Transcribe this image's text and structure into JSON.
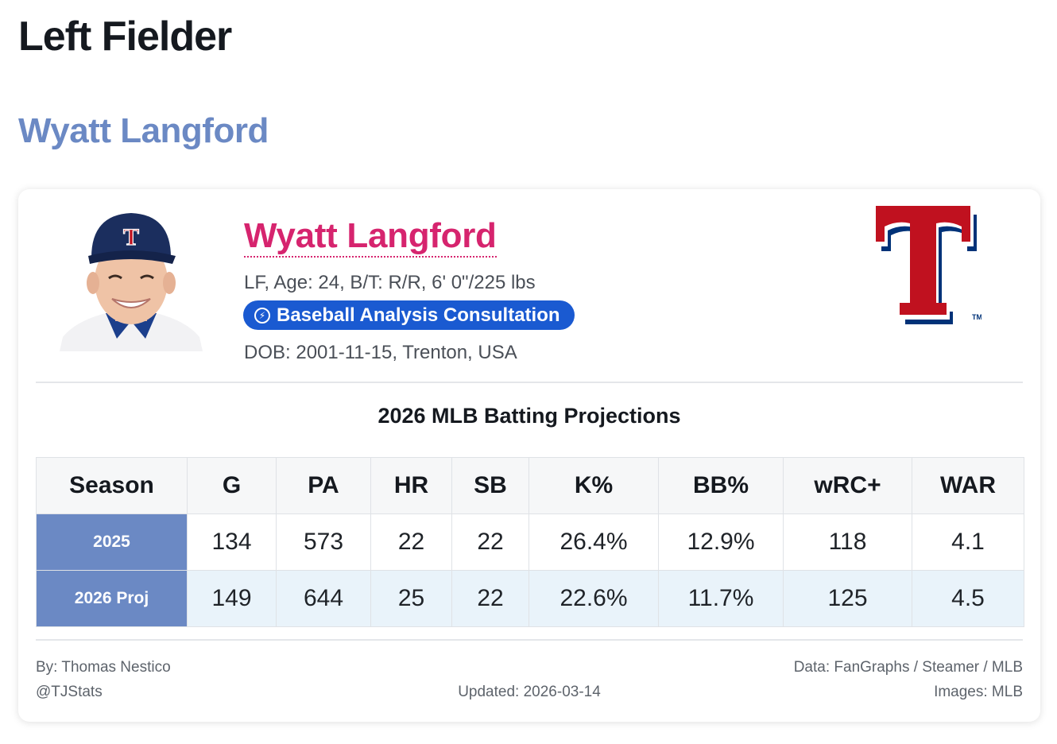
{
  "page": {
    "heading": "Left Fielder",
    "player_heading": "Wyatt Langford"
  },
  "card": {
    "player_name": "Wyatt Langford",
    "bio": "LF, Age: 24, B/T: R/R, 6' 0\"/225 lbs",
    "consult_button": {
      "icon": "lightning-icon",
      "label": "Baseball Analysis Consultation",
      "color": "#1a5ad1"
    },
    "dob": "DOB: 2001-11-15, Trenton, USA",
    "team_logo": {
      "icon": "texas-rangers-logo",
      "letter": "T",
      "mark": "TM"
    }
  },
  "projections": {
    "title": "2026 MLB Batting Projections",
    "columns": [
      "Season",
      "G",
      "PA",
      "HR",
      "SB",
      "K%",
      "BB%",
      "wRC+",
      "WAR"
    ],
    "rows": [
      [
        "2025",
        "134",
        "573",
        "22",
        "22",
        "26.4%",
        "12.9%",
        "118",
        "4.1"
      ],
      [
        "2026 Proj",
        "149",
        "644",
        "25",
        "22",
        "22.6%",
        "11.7%",
        "125",
        "4.5"
      ]
    ]
  },
  "footer": {
    "author": "By: Thomas Nestico",
    "handle": "@TJStats",
    "updated": "Updated: 2026-03-14",
    "data_source": "Data: FanGraphs / Steamer / MLB",
    "images_source": "Images: MLB"
  },
  "colors": {
    "accent_blue": "#6b89c4",
    "name_pink": "#d6246e",
    "rangers_red": "#c0111f",
    "rangers_blue": "#003278"
  }
}
